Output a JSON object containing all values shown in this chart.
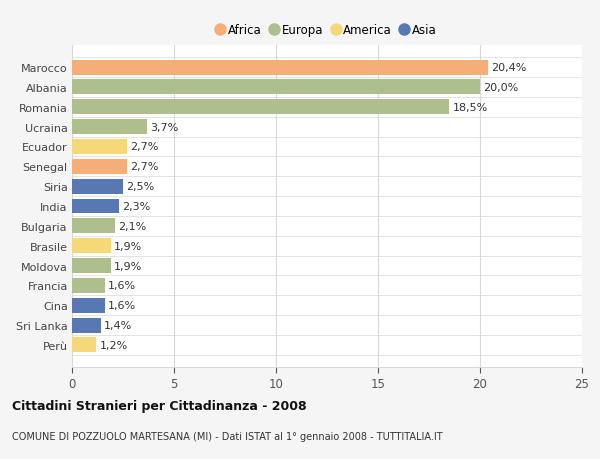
{
  "categories": [
    "Marocco",
    "Albania",
    "Romania",
    "Ucraina",
    "Ecuador",
    "Senegal",
    "Siria",
    "India",
    "Bulgaria",
    "Brasile",
    "Moldova",
    "Francia",
    "Cina",
    "Sri Lanka",
    "Perù"
  ],
  "values": [
    20.4,
    20.0,
    18.5,
    3.7,
    2.7,
    2.7,
    2.5,
    2.3,
    2.1,
    1.9,
    1.9,
    1.6,
    1.6,
    1.4,
    1.2
  ],
  "labels": [
    "20,4%",
    "20,0%",
    "18,5%",
    "3,7%",
    "2,7%",
    "2,7%",
    "2,5%",
    "2,3%",
    "2,1%",
    "1,9%",
    "1,9%",
    "1,6%",
    "1,6%",
    "1,4%",
    "1,2%"
  ],
  "continents": [
    "Africa",
    "Europa",
    "Europa",
    "Europa",
    "America",
    "Africa",
    "Asia",
    "Asia",
    "Europa",
    "America",
    "Europa",
    "Europa",
    "Asia",
    "Asia",
    "America"
  ],
  "colors": {
    "Africa": "#F5AE78",
    "Europa": "#AEBE8C",
    "America": "#F5D878",
    "Asia": "#5878B4"
  },
  "legend_order": [
    "Africa",
    "Europa",
    "America",
    "Asia"
  ],
  "xlim": [
    0,
    25
  ],
  "xticks": [
    0,
    5,
    10,
    15,
    20,
    25
  ],
  "title": "Cittadini Stranieri per Cittadinanza - 2008",
  "subtitle": "COMUNE DI POZZUOLO MARTESANA (MI) - Dati ISTAT al 1° gennaio 2008 - TUTTITALIA.IT",
  "background_color": "#f5f5f5",
  "bar_area_color": "#ffffff",
  "grid_color": "#d8d8d8",
  "label_fontsize": 8,
  "ytick_fontsize": 8,
  "xtick_fontsize": 8.5
}
